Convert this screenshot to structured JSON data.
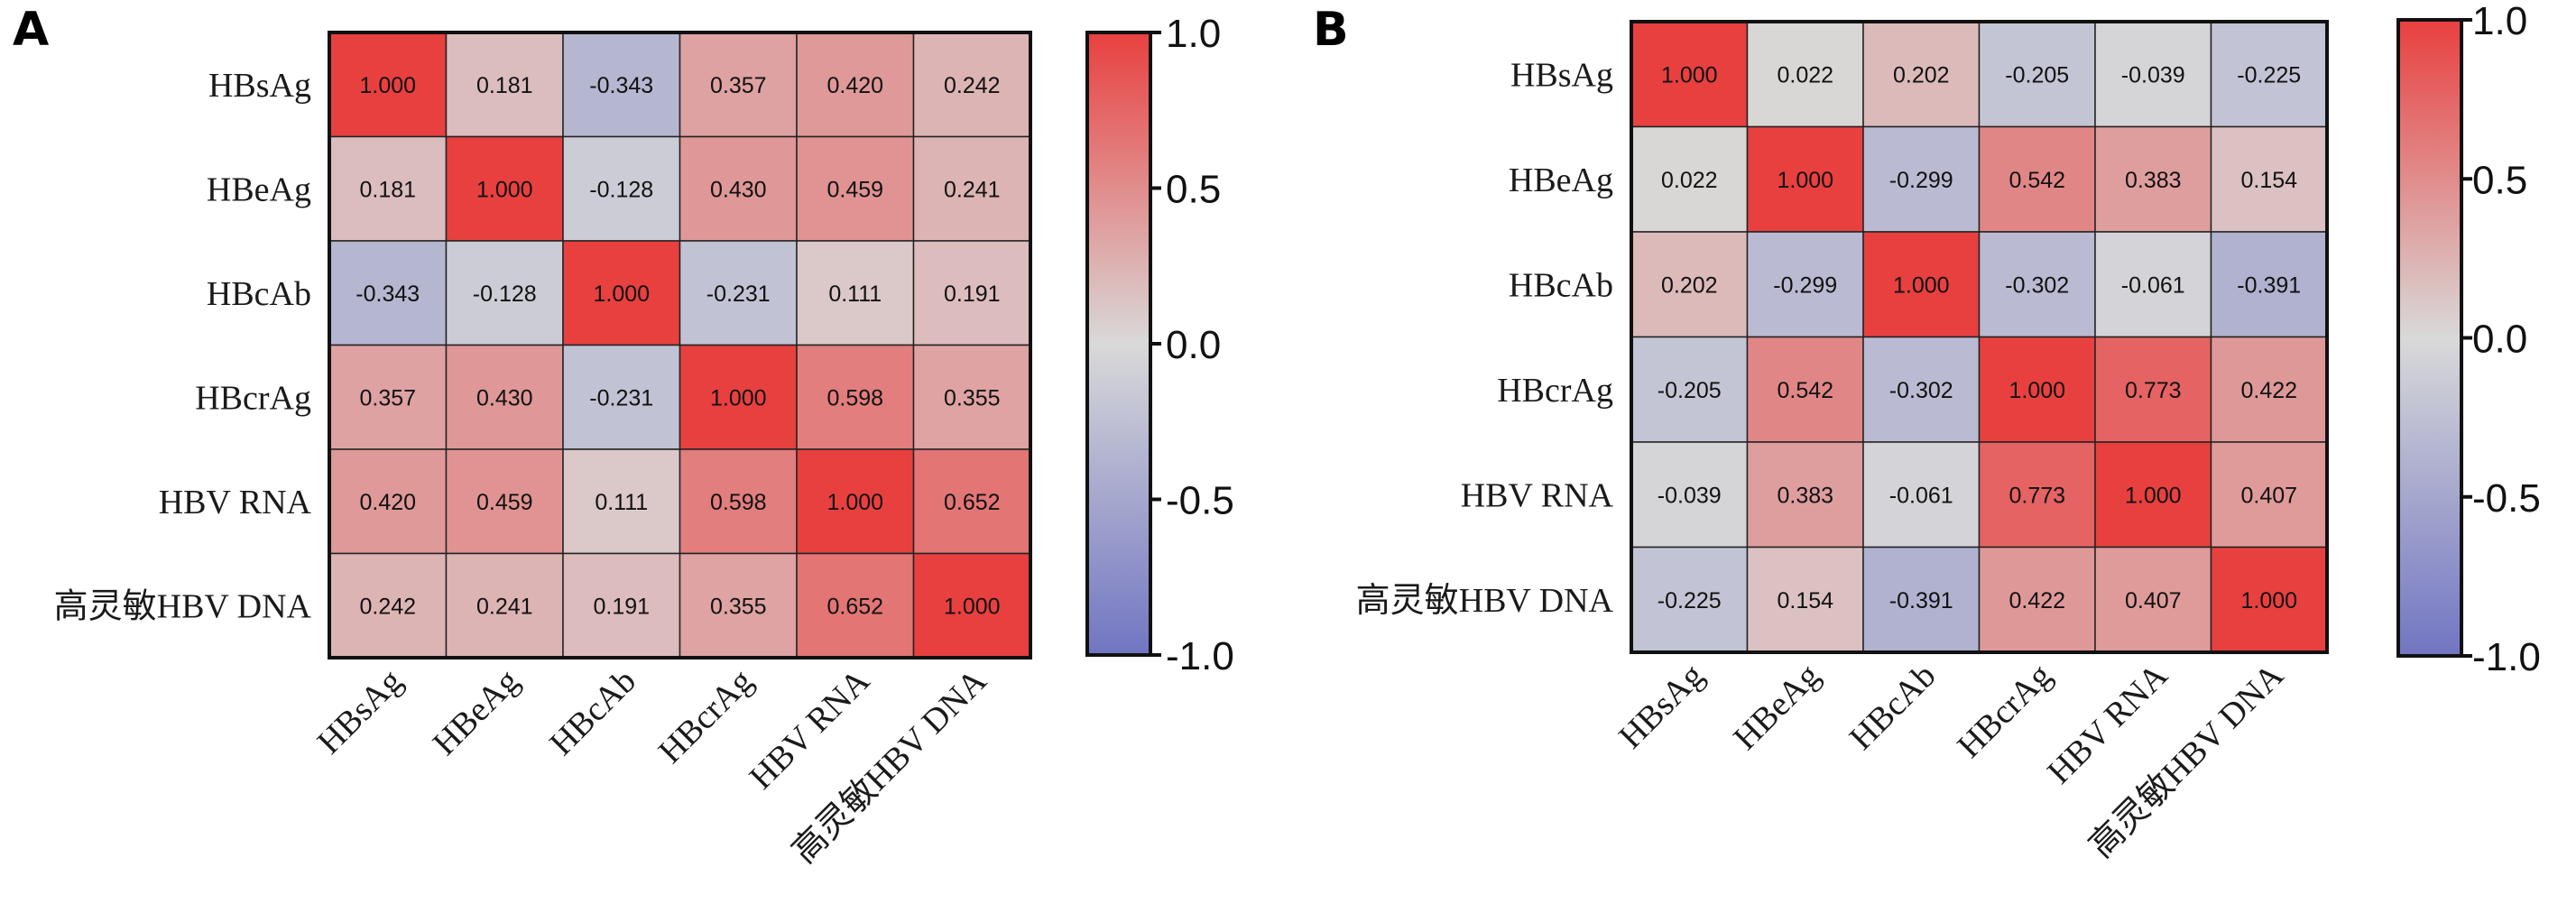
{
  "chart_data": [
    {
      "type": "heatmap",
      "panel_label": "A",
      "rows": [
        "HBsAg",
        "HBeAg",
        "HBcAb",
        "HBcrAg",
        "HBV RNA",
        "高灵敏HBV DNA"
      ],
      "columns": [
        "HBsAg",
        "HBeAg",
        "HBcAb",
        "HBcrAg",
        "HBV RNA",
        "高灵敏HBV DNA"
      ],
      "values": [
        [
          1.0,
          0.181,
          -0.343,
          0.357,
          0.42,
          0.242
        ],
        [
          0.181,
          1.0,
          -0.128,
          0.43,
          0.459,
          0.241
        ],
        [
          -0.343,
          -0.128,
          1.0,
          -0.231,
          0.111,
          0.191
        ],
        [
          0.357,
          0.43,
          -0.231,
          1.0,
          0.598,
          0.355
        ],
        [
          0.42,
          0.459,
          0.111,
          0.598,
          1.0,
          0.652
        ],
        [
          0.242,
          0.241,
          0.191,
          0.355,
          0.652,
          1.0
        ]
      ],
      "value_labels": [
        [
          "1.000",
          "0.181",
          "-0.343",
          "0.357",
          "0.420",
          "0.242"
        ],
        [
          "0.181",
          "1.000",
          "-0.128",
          "0.430",
          "0.459",
          "0.241"
        ],
        [
          "-0.343",
          "-0.128",
          "1.000",
          "-0.231",
          "0.111",
          "0.191"
        ],
        [
          "0.357",
          "0.430",
          "-0.231",
          "1.000",
          "0.598",
          "0.355"
        ],
        [
          "0.420",
          "0.459",
          "0.111",
          "0.598",
          "1.000",
          "0.652"
        ],
        [
          "0.242",
          "0.241",
          "0.191",
          "0.355",
          "0.652",
          "1.000"
        ]
      ],
      "colorbar": {
        "range": [
          -1.0,
          1.0
        ],
        "ticks": [
          "1.0",
          "0.5",
          "0.0",
          "-0.5",
          "-1.0"
        ]
      }
    },
    {
      "type": "heatmap",
      "panel_label": "B",
      "rows": [
        "HBsAg",
        "HBeAg",
        "HBcAb",
        "HBcrAg",
        "HBV RNA",
        "高灵敏HBV DNA"
      ],
      "columns": [
        "HBsAg",
        "HBeAg",
        "HBcAb",
        "HBcrAg",
        "HBV RNA",
        "高灵敏HBV DNA"
      ],
      "values": [
        [
          1.0,
          0.022,
          0.202,
          -0.205,
          -0.039,
          -0.225
        ],
        [
          0.022,
          1.0,
          -0.299,
          0.542,
          0.383,
          0.154
        ],
        [
          0.202,
          -0.299,
          1.0,
          -0.302,
          -0.061,
          -0.391
        ],
        [
          -0.205,
          0.542,
          -0.302,
          1.0,
          0.773,
          0.422
        ],
        [
          -0.039,
          0.383,
          -0.061,
          0.773,
          1.0,
          0.407
        ],
        [
          -0.225,
          0.154,
          -0.391,
          0.422,
          0.407,
          1.0
        ]
      ],
      "value_labels": [
        [
          "1.000",
          "0.022",
          "0.202",
          "-0.205",
          "-0.039",
          "-0.225"
        ],
        [
          "0.022",
          "1.000",
          "-0.299",
          "0.542",
          "0.383",
          "0.154"
        ],
        [
          "0.202",
          "-0.299",
          "1.000",
          "-0.302",
          "-0.061",
          "-0.391"
        ],
        [
          "-0.205",
          "0.542",
          "-0.302",
          "1.000",
          "0.773",
          "0.422"
        ],
        [
          "-0.039",
          "0.383",
          "-0.061",
          "0.773",
          "1.000",
          "0.407"
        ],
        [
          "-0.225",
          "0.154",
          "-0.391",
          "0.422",
          "0.407",
          "1.000"
        ]
      ],
      "colorbar": {
        "range": [
          -1.0,
          1.0
        ],
        "ticks": [
          "1.0",
          "0.5",
          "0.0",
          "-0.5",
          "-1.0"
        ]
      }
    }
  ],
  "colors": {
    "high": "#e8403f",
    "mid": "#d9d9d9",
    "low": "#7175c2"
  }
}
